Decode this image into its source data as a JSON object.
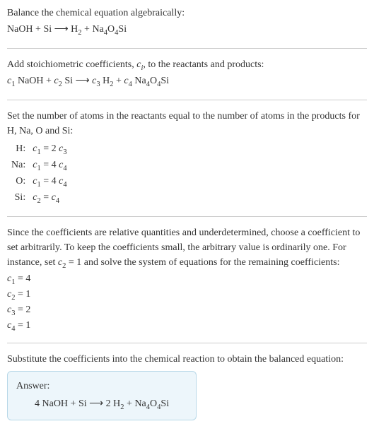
{
  "colors": {
    "text": "#333333",
    "border": "#cccccc",
    "answer_bg": "#edf6fb",
    "answer_border": "#b8d8e8",
    "background": "#ffffff"
  },
  "font": {
    "family": "Georgia, 'Times New Roman', serif",
    "size_pt": 14
  },
  "sec1": {
    "line1": "Balance the chemical equation algebraically:",
    "eq_parts": [
      "NaOH + Si  ⟶  H",
      "2",
      " + Na",
      "4",
      "O",
      "4",
      "Si"
    ]
  },
  "sec2": {
    "line1_parts": [
      "Add stoichiometric coefficients, ",
      "c",
      "i",
      ", to the reactants and products:"
    ],
    "eq_parts": [
      "c",
      "1",
      " NaOH + ",
      "c",
      "2",
      " Si  ⟶  ",
      "c",
      "3",
      " H",
      "2",
      " + ",
      "c",
      "4",
      " Na",
      "4",
      "O",
      "4",
      "Si"
    ]
  },
  "sec3": {
    "line1": "Set the number of atoms in the reactants equal to the number of atoms in the products for H, Na, O and Si:",
    "rows": [
      {
        "el": "H:",
        "eq": [
          "c",
          "1",
          " = 2 ",
          "c",
          "3"
        ]
      },
      {
        "el": "Na:",
        "eq": [
          "c",
          "1",
          " = 4 ",
          "c",
          "4"
        ]
      },
      {
        "el": "O:",
        "eq": [
          "c",
          "1",
          " = 4 ",
          "c",
          "4"
        ]
      },
      {
        "el": "Si:",
        "eq": [
          "c",
          "2",
          " = ",
          "c",
          "4"
        ]
      }
    ]
  },
  "sec4": {
    "para_parts": [
      "Since the coefficients are relative quantities and underdetermined, choose a coefficient to set arbitrarily. To keep the coefficients small, the arbitrary value is ordinarily one. For instance, set ",
      "c",
      "2",
      " = 1 and solve the system of equations for the remaining coefficients:"
    ],
    "coeffs": [
      [
        "c",
        "1",
        " = 4"
      ],
      [
        "c",
        "2",
        " = 1"
      ],
      [
        "c",
        "3",
        " = 2"
      ],
      [
        "c",
        "4",
        " = 1"
      ]
    ]
  },
  "sec5": {
    "line1": "Substitute the coefficients into the chemical reaction to obtain the balanced equation:",
    "answer_title": "Answer:",
    "answer_eq_parts": [
      "4 NaOH + Si  ⟶  2 H",
      "2",
      " + Na",
      "4",
      "O",
      "4",
      "Si"
    ]
  }
}
